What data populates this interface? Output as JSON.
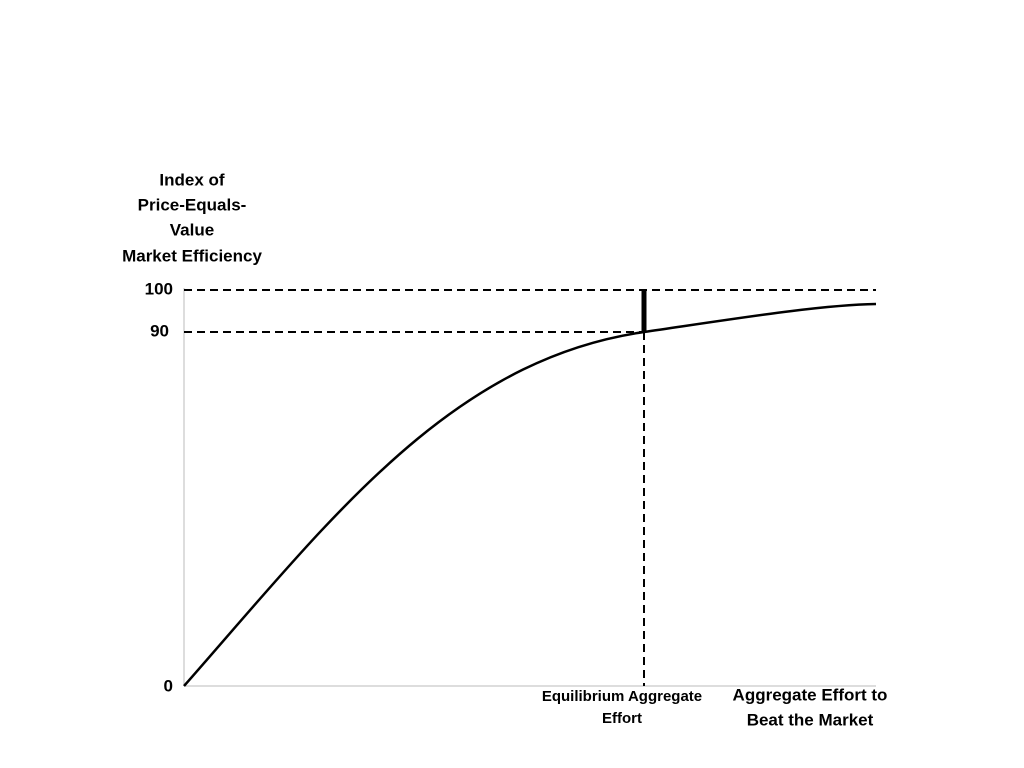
{
  "y_axis": {
    "title_lines": [
      "Index of",
      "Price-Equals-",
      "Value",
      "Market Efficiency"
    ],
    "tick_labels": [
      "100",
      "90",
      "0"
    ]
  },
  "x_axis": {
    "equilibrium_label_lines": [
      "Equilibrium Aggregate",
      "Effort"
    ],
    "title_lines": [
      "Aggregate Effort to",
      "Beat the Market"
    ]
  }
}
